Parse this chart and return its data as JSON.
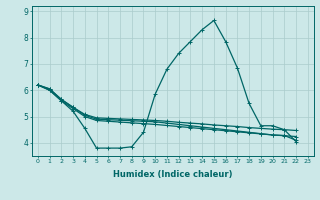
{
  "xlabel": "Humidex (Indice chaleur)",
  "background_color": "#cce8e8",
  "grid_color": "#aacccc",
  "line_color": "#006666",
  "xlim": [
    -0.5,
    23.5
  ],
  "ylim": [
    3.5,
    9.2
  ],
  "yticks": [
    4,
    5,
    6,
    7,
    8,
    9
  ],
  "xticks": [
    0,
    1,
    2,
    3,
    4,
    5,
    6,
    7,
    8,
    9,
    10,
    11,
    12,
    13,
    14,
    15,
    16,
    17,
    18,
    19,
    20,
    21,
    22,
    23
  ],
  "curve1_x": [
    0,
    1,
    2,
    3,
    4,
    5,
    6,
    7,
    8,
    9,
    10,
    11,
    12,
    13,
    14,
    15,
    16,
    17,
    18,
    19,
    20,
    21,
    22
  ],
  "curve1_y": [
    6.2,
    6.0,
    5.6,
    5.2,
    4.55,
    3.8,
    3.8,
    3.8,
    3.85,
    4.4,
    5.85,
    6.8,
    7.4,
    7.85,
    8.3,
    8.65,
    7.85,
    6.85,
    5.5,
    4.65,
    4.65,
    4.5,
    4.05
  ],
  "curve2_x": [
    0,
    1,
    2,
    3,
    4,
    5,
    6,
    7,
    8,
    9,
    10,
    11,
    12,
    13,
    14,
    15,
    16,
    17,
    18,
    19,
    20,
    21,
    22
  ],
  "curve2_y": [
    6.2,
    6.05,
    5.65,
    5.35,
    5.05,
    4.9,
    4.88,
    4.86,
    4.84,
    4.82,
    4.8,
    4.75,
    4.7,
    4.65,
    4.6,
    4.55,
    4.5,
    4.45,
    4.4,
    4.35,
    4.3,
    4.28,
    4.1
  ],
  "curve3_x": [
    0,
    1,
    2,
    3,
    4,
    5,
    6,
    7,
    8,
    9,
    10,
    11,
    12,
    13,
    14,
    15,
    16,
    17,
    18,
    19,
    20,
    21,
    22
  ],
  "curve3_y": [
    6.2,
    6.05,
    5.65,
    5.35,
    5.08,
    4.95,
    4.93,
    4.91,
    4.89,
    4.87,
    4.85,
    4.82,
    4.78,
    4.75,
    4.72,
    4.68,
    4.65,
    4.62,
    4.58,
    4.55,
    4.52,
    4.5,
    4.47
  ],
  "curve4_x": [
    0,
    1,
    2,
    3,
    4,
    5,
    6,
    7,
    8,
    9,
    10,
    11,
    12,
    13,
    14,
    15,
    16,
    17,
    18,
    19,
    20,
    21,
    22
  ],
  "curve4_y": [
    6.2,
    6.0,
    5.6,
    5.3,
    5.0,
    4.85,
    4.82,
    4.79,
    4.76,
    4.73,
    4.7,
    4.66,
    4.62,
    4.58,
    4.54,
    4.5,
    4.46,
    4.42,
    4.38,
    4.34,
    4.3,
    4.27,
    4.24
  ]
}
